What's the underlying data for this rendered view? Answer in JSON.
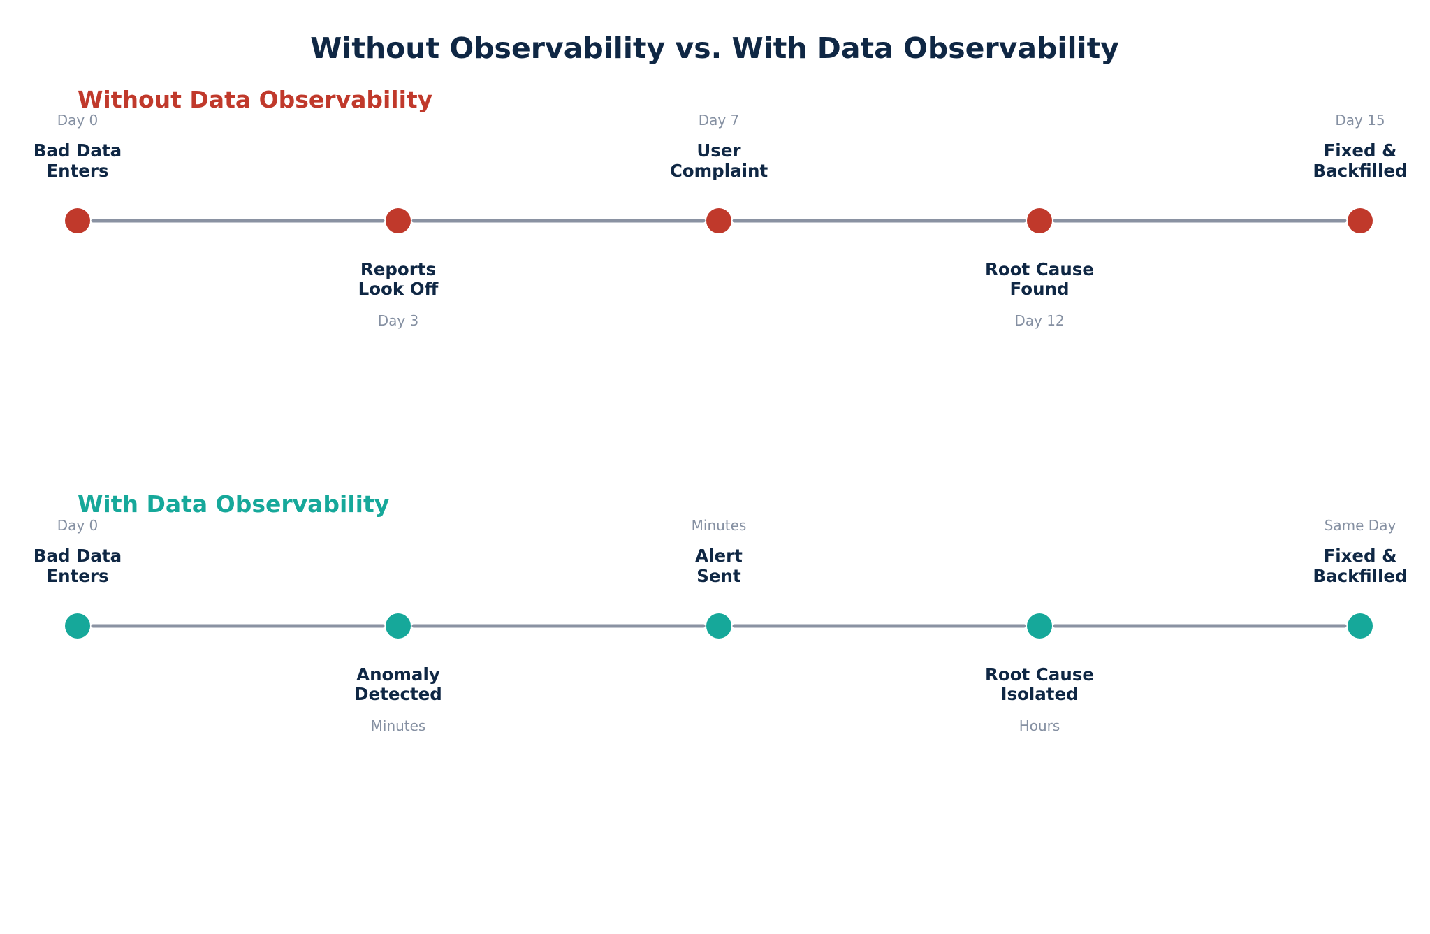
{
  "title": "Without Observability vs. With Data Observability",
  "colors": {
    "title": "#0f2744",
    "without_accent": "#c0392b",
    "with_accent": "#16a89a",
    "connector": "#8a92a2",
    "time_text": "#8590a2",
    "event_text": "#0f2744"
  },
  "timelines": [
    {
      "id": "without",
      "heading": "Without Data Observability",
      "accent": "#c0392b",
      "events": [
        {
          "label": [
            "Bad Data",
            "Enters"
          ],
          "time": "Day 0"
        },
        {
          "label": [
            "Reports",
            "Look Off"
          ],
          "time": "Day 3"
        },
        {
          "label": [
            "User",
            "Complaint"
          ],
          "time": "Day 7"
        },
        {
          "label": [
            "Root Cause",
            "Found"
          ],
          "time": "Day 12"
        },
        {
          "label": [
            "Fixed &",
            "Backfilled"
          ],
          "time": "Day 15"
        }
      ]
    },
    {
      "id": "with",
      "heading": "With Data Observability",
      "accent": "#16a89a",
      "events": [
        {
          "label": [
            "Bad Data",
            "Enters"
          ],
          "time": "Day 0"
        },
        {
          "label": [
            "Anomaly",
            "Detected"
          ],
          "time": "Minutes"
        },
        {
          "label": [
            "Alert",
            "Sent"
          ],
          "time": "Minutes"
        },
        {
          "label": [
            "Root Cause",
            "Isolated"
          ],
          "time": "Hours"
        },
        {
          "label": [
            "Fixed &",
            "Backfilled"
          ],
          "time": "Same Day"
        }
      ]
    }
  ]
}
